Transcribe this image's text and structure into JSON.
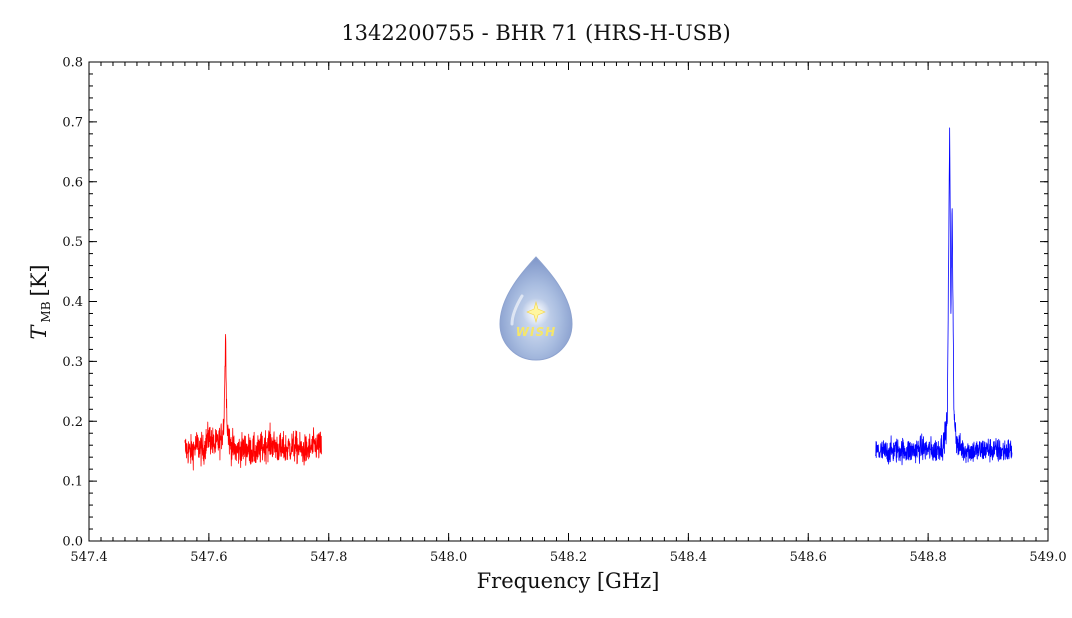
{
  "chart_data": {
    "type": "line",
    "title": "1342200755 - BHR 71 (HRS-H-USB)",
    "xlabel": "Frequency [GHz]",
    "ylabel": {
      "symbol": "T",
      "subscript": "MB",
      "unit": "[K]"
    },
    "xlim": [
      547.4,
      549.0
    ],
    "ylim": [
      0.0,
      0.8
    ],
    "x_major_ticks": [
      547.4,
      547.6,
      547.8,
      548.0,
      548.2,
      548.4,
      548.6,
      548.8,
      549.0
    ],
    "x_tick_labels": [
      "547.4",
      "547.6",
      "547.8",
      "548.0",
      "548.2",
      "548.4",
      "548.6",
      "548.8",
      "549.0"
    ],
    "y_major_ticks": [
      0.0,
      0.1,
      0.2,
      0.3,
      0.4,
      0.5,
      0.6,
      0.7,
      0.8
    ],
    "y_tick_labels": [
      "0.0",
      "0.1",
      "0.2",
      "0.3",
      "0.4",
      "0.5",
      "0.6",
      "0.7",
      "0.8"
    ],
    "grid": false,
    "legend": "none",
    "series": [
      {
        "color": "#ff0000",
        "x": [
          547.56,
          547.57,
          547.58,
          547.59,
          547.6,
          547.61,
          547.62,
          547.625,
          547.628,
          547.63,
          547.635,
          547.645,
          547.66,
          547.68,
          547.7,
          547.72,
          547.74,
          547.76,
          547.78,
          547.788
        ],
        "y": [
          0.155,
          0.148,
          0.16,
          0.15,
          0.175,
          0.158,
          0.17,
          0.195,
          0.345,
          0.2,
          0.162,
          0.15,
          0.155,
          0.148,
          0.165,
          0.152,
          0.158,
          0.15,
          0.16,
          0.155
        ],
        "noise_amplitude": 0.025
      },
      {
        "color": "#0000ff",
        "x": [
          548.712,
          548.73,
          548.75,
          548.77,
          548.79,
          548.81,
          548.825,
          548.832,
          548.836,
          548.838,
          548.84,
          548.843,
          548.848,
          548.86,
          548.88,
          548.9,
          548.92,
          548.94
        ],
        "y": [
          0.15,
          0.148,
          0.152,
          0.15,
          0.155,
          0.15,
          0.16,
          0.2,
          0.69,
          0.38,
          0.555,
          0.22,
          0.16,
          0.152,
          0.15,
          0.153,
          0.15,
          0.152
        ],
        "noise_amplitude": 0.02
      }
    ],
    "logo": {
      "name": "WISH"
    }
  }
}
